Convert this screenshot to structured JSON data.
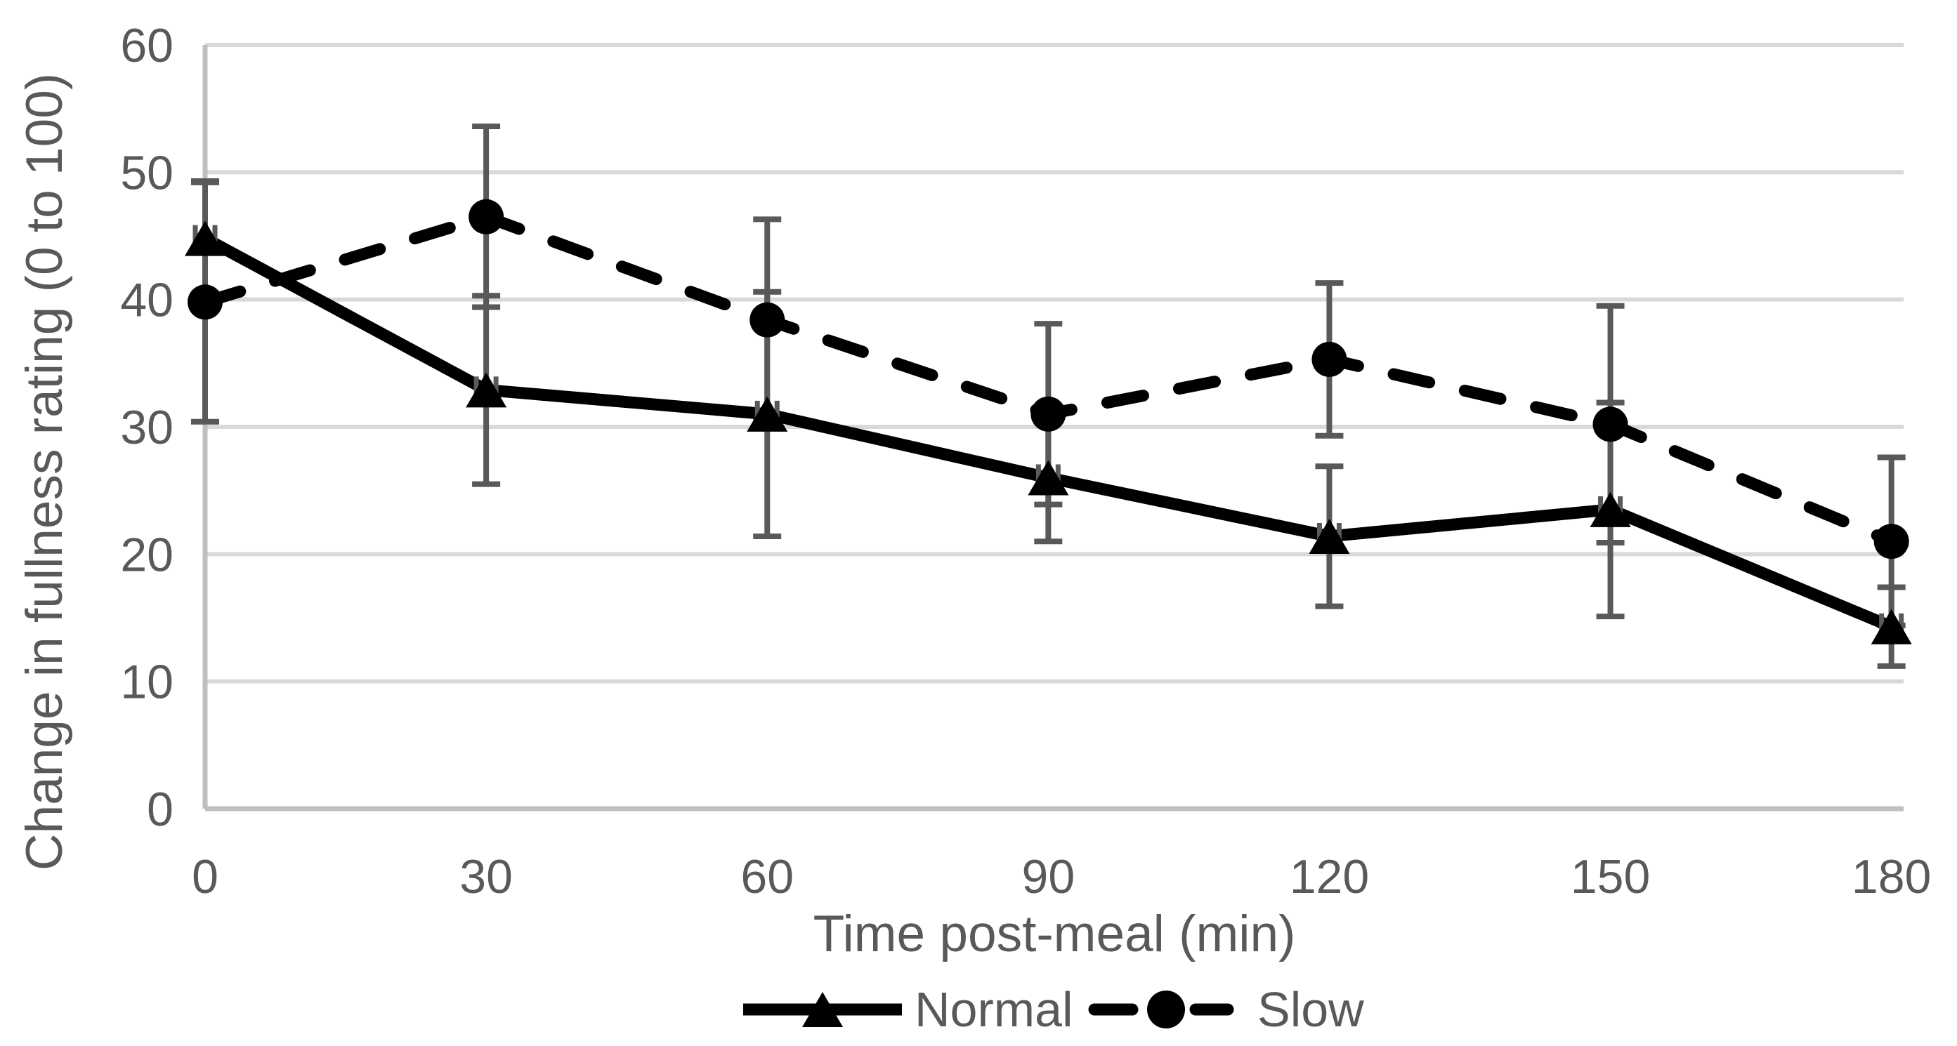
{
  "chart_data": {
    "type": "line",
    "title": "",
    "xlabel": "Time post-meal (min)",
    "ylabel": "Change in fullness rating (0 to 100)",
    "x": [
      0,
      30,
      60,
      90,
      120,
      150,
      180
    ],
    "xticklabels": [
      "0",
      "30",
      "60",
      "90",
      "120",
      "150",
      "180"
    ],
    "yticks": [
      0,
      10,
      20,
      30,
      40,
      50,
      60
    ],
    "yticklabels": [
      "0",
      "10",
      "20",
      "30",
      "40",
      "50",
      "60"
    ],
    "xlim": [
      0,
      181.3
    ],
    "ylim": [
      0,
      60
    ],
    "grid": "horizontal",
    "legend_position": "bottom-center",
    "series": [
      {
        "name": "Normal",
        "line": "solid",
        "marker": "triangle",
        "color": "#000000",
        "values": [
          44.8,
          32.9,
          31.0,
          26.0,
          21.4,
          23.5,
          14.3
        ],
        "yerr": [
          4.5,
          7.4,
          9.6,
          5.0,
          5.5,
          8.4,
          3.1
        ]
      },
      {
        "name": "Slow",
        "line": "dashed",
        "marker": "circle",
        "color": "#000000",
        "values": [
          39.8,
          46.5,
          38.4,
          31.0,
          35.3,
          30.2,
          21.0
        ],
        "yerr": [
          9.4,
          7.1,
          7.9,
          7.1,
          6.0,
          9.3,
          6.6
        ]
      }
    ],
    "colors": {
      "series": "#000000",
      "axis_text": "#595959",
      "gridline": "#D9D9D9",
      "axis_line": "#BFBFBF",
      "error_bar": "#595959",
      "background": "#FFFFFF"
    }
  }
}
